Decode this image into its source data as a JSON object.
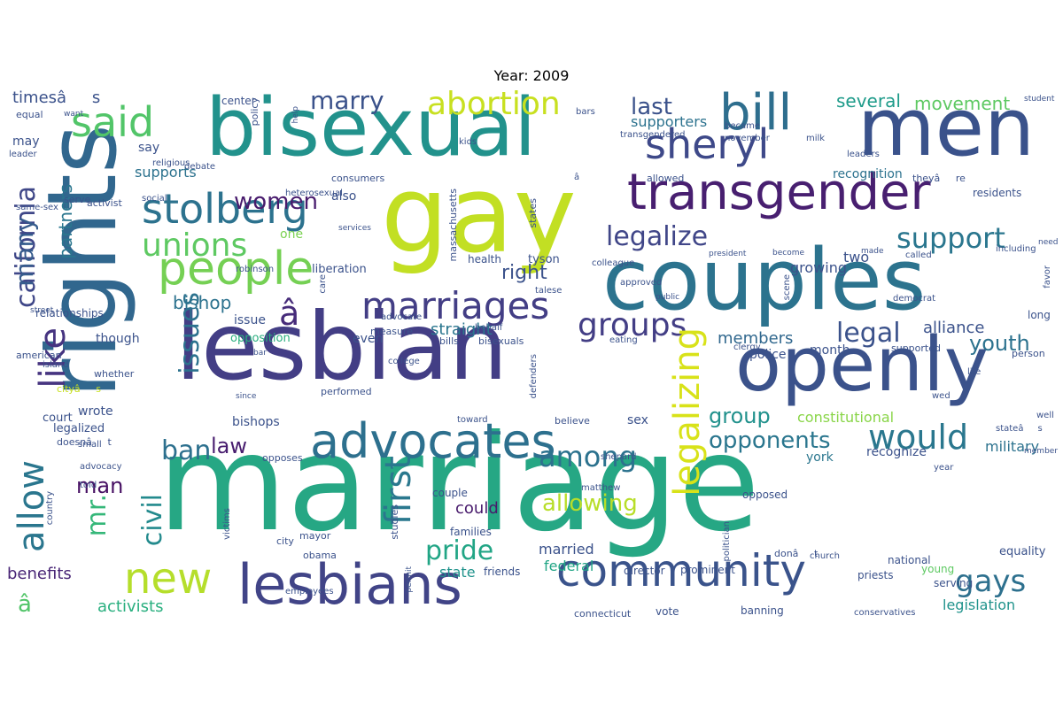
{
  "title": "Year: 2009",
  "words": [
    {
      "text": "marriage",
      "color": "#26a784"
    },
    {
      "text": "gay",
      "color": "#c2df23"
    },
    {
      "text": "rights",
      "color": "#31678e"
    },
    {
      "text": "bisexual",
      "color": "#22928c"
    },
    {
      "text": "lesbian",
      "color": "#433e85"
    },
    {
      "text": "couples",
      "color": "#2c738e"
    },
    {
      "text": "men",
      "color": "#3a528b"
    },
    {
      "text": "openly",
      "color": "#3b528b"
    },
    {
      "text": "transgender",
      "color": "#481f70"
    },
    {
      "text": "lesbians",
      "color": "#414487"
    },
    {
      "text": "community",
      "color": "#3a538b"
    },
    {
      "text": "advocates",
      "color": "#2d708e"
    },
    {
      "text": "people",
      "color": "#75d054"
    },
    {
      "text": "bill",
      "color": "#2e6e8e"
    },
    {
      "text": "stolberg",
      "color": "#2c728e"
    },
    {
      "text": "sheryl",
      "color": "#3e4989"
    },
    {
      "text": "marriages",
      "color": "#433e85"
    },
    {
      "text": "said",
      "color": "#52c569"
    },
    {
      "text": "new",
      "color": "#b5de2b"
    },
    {
      "text": "california",
      "color": "#3f4788"
    },
    {
      "text": "abortion",
      "color": "#c8e020"
    },
    {
      "text": "unions",
      "color": "#5ec962"
    },
    {
      "text": "legalize",
      "color": "#404688"
    },
    {
      "text": "support",
      "color": "#2a768e"
    },
    {
      "text": "groups",
      "color": "#433e85"
    },
    {
      "text": "would",
      "color": "#2a778e"
    },
    {
      "text": "marry",
      "color": "#3b528b"
    },
    {
      "text": "legal",
      "color": "#3b528b"
    },
    {
      "text": "â",
      "color": "#472c7a"
    },
    {
      "text": "allow",
      "color": "#2a768e"
    },
    {
      "text": "issues",
      "color": "#2c728e"
    },
    {
      "text": "first",
      "color": "#2a788e"
    },
    {
      "text": "among",
      "color": "#2c728e"
    },
    {
      "text": "pride",
      "color": "#21a585"
    },
    {
      "text": "gays",
      "color": "#2d708e"
    },
    {
      "text": "like",
      "color": "#463480"
    },
    {
      "text": "many",
      "color": "#365c8d"
    },
    {
      "text": "women",
      "color": "#481b6d"
    },
    {
      "text": "ban",
      "color": "#2d708e"
    },
    {
      "text": "mr.",
      "color": "#35b779"
    },
    {
      "text": "civil",
      "color": "#238a8d"
    },
    {
      "text": "legalizing",
      "color": "#d8e219"
    },
    {
      "text": "last",
      "color": "#3b528b"
    },
    {
      "text": "opponents",
      "color": "#2a768e"
    },
    {
      "text": "man",
      "color": "#471063"
    },
    {
      "text": "allowing",
      "color": "#b8de29"
    },
    {
      "text": "right",
      "color": "#3b528b"
    },
    {
      "text": "group",
      "color": "#21918c"
    },
    {
      "text": "youth",
      "color": "#2c728e"
    },
    {
      "text": "law",
      "color": "#481d6f"
    },
    {
      "text": "partners",
      "color": "#2a768e"
    },
    {
      "text": "bishop",
      "color": "#2c728e"
    },
    {
      "text": "â",
      "color": "#52c569"
    },
    {
      "text": "several",
      "color": "#1e9b8a"
    },
    {
      "text": "movement",
      "color": "#5ec962"
    },
    {
      "text": "straight",
      "color": "#2a768e"
    },
    {
      "text": "members",
      "color": "#31688e"
    },
    {
      "text": "alliance",
      "color": "#3b528b"
    },
    {
      "text": "could",
      "color": "#481a6c"
    },
    {
      "text": "benefits",
      "color": "#482576"
    },
    {
      "text": "activists",
      "color": "#29af7f"
    },
    {
      "text": "state",
      "color": "#20938c"
    },
    {
      "text": "federal",
      "color": "#21a585"
    },
    {
      "text": "married",
      "color": "#3b528b"
    },
    {
      "text": "two",
      "color": "#3b528b"
    },
    {
      "text": "growing",
      "color": "#3b528b"
    },
    {
      "text": "constitutional",
      "color": "#89d548"
    },
    {
      "text": "military",
      "color": "#2c728e"
    },
    {
      "text": "legislation",
      "color": "#20938c"
    },
    {
      "text": "supports",
      "color": "#2c728e"
    },
    {
      "text": "supporters",
      "color": "#2c728e"
    },
    {
      "text": "recognition",
      "color": "#2c728e"
    },
    {
      "text": "also",
      "color": "#3b528b"
    },
    {
      "text": "one",
      "color": "#7ad151"
    },
    {
      "text": "timesâs",
      "color": "#3b528b"
    },
    {
      "text": "may",
      "color": "#3b528b"
    },
    {
      "text": "say",
      "color": "#3b528b"
    },
    {
      "text": "issue",
      "color": "#3b528b"
    },
    {
      "text": "opposition",
      "color": "#29af7f"
    },
    {
      "text": "even",
      "color": "#3b528b"
    },
    {
      "text": "though",
      "color": "#3b528b"
    },
    {
      "text": "relationships",
      "color": "#3b528b"
    },
    {
      "text": "wrote",
      "color": "#3b528b"
    },
    {
      "text": "bishops",
      "color": "#3b528b"
    },
    {
      "text": "court",
      "color": "#3b528b"
    },
    {
      "text": "legalized",
      "color": "#3b528b"
    },
    {
      "text": "sex",
      "color": "#3b528b"
    },
    {
      "text": "recognize",
      "color": "#3b528b"
    },
    {
      "text": "york",
      "color": "#2a768e"
    },
    {
      "text": "month",
      "color": "#3b528b"
    },
    {
      "text": "police",
      "color": "#3b528b"
    },
    {
      "text": "tyson",
      "color": "#3b528b"
    },
    {
      "text": "health",
      "color": "#3b528b"
    },
    {
      "text": "liberation",
      "color": "#3b528b"
    },
    {
      "text": "families",
      "color": "#3b528b"
    },
    {
      "text": "friends",
      "color": "#3b528b"
    },
    {
      "text": "director",
      "color": "#3b528b"
    },
    {
      "text": "prominent",
      "color": "#3b528b"
    },
    {
      "text": "priests",
      "color": "#3b528b"
    },
    {
      "text": "equality",
      "color": "#3b528b"
    },
    {
      "text": "national",
      "color": "#3b528b"
    },
    {
      "text": "young",
      "color": "#5ec962"
    },
    {
      "text": "serving",
      "color": "#3b528b"
    },
    {
      "text": "vote",
      "color": "#3b528b"
    },
    {
      "text": "banning",
      "color": "#3b528b"
    },
    {
      "text": "opposed",
      "color": "#3b528b"
    },
    {
      "text": "couple",
      "color": "#3b528b"
    },
    {
      "text": "city",
      "color": "#3b528b"
    },
    {
      "text": "mayor",
      "color": "#3b528b"
    },
    {
      "text": "obama",
      "color": "#3b528b"
    },
    {
      "text": "studies",
      "color": "#3b528b"
    },
    {
      "text": "opposes",
      "color": "#3b528b"
    },
    {
      "text": "advocacy",
      "color": "#3b528b"
    },
    {
      "text": "told",
      "color": "#3b528b"
    },
    {
      "text": "country",
      "color": "#3b528b"
    },
    {
      "text": "american",
      "color": "#3b528b"
    },
    {
      "text": "whether",
      "color": "#3b528b"
    },
    {
      "text": "cityâs",
      "color": "#c8e020"
    },
    {
      "text": "small",
      "color": "#3b528b"
    },
    {
      "text": "island",
      "color": "#3b528b"
    },
    {
      "text": "street",
      "color": "#3b528b"
    },
    {
      "text": "serve",
      "color": "#3b528b"
    },
    {
      "text": "activist",
      "color": "#3b528b"
    },
    {
      "text": "social",
      "color": "#3b528b"
    },
    {
      "text": "same-sex",
      "color": "#3b528b"
    },
    {
      "text": "debate",
      "color": "#3b528b"
    },
    {
      "text": "religious",
      "color": "#3b528b"
    },
    {
      "text": "leader",
      "color": "#3b528b"
    },
    {
      "text": "equal",
      "color": "#3b528b"
    },
    {
      "text": "want",
      "color": "#3b528b"
    },
    {
      "text": "center",
      "color": "#3b528b"
    },
    {
      "text": "policy",
      "color": "#3b528b"
    },
    {
      "text": "help",
      "color": "#3b528b"
    },
    {
      "text": "consumers",
      "color": "#3b528b"
    },
    {
      "text": "kids",
      "color": "#3b528b"
    },
    {
      "text": "bars",
      "color": "#3b528b"
    },
    {
      "text": "transgendered",
      "color": "#3b528b"
    },
    {
      "text": "became",
      "color": "#3b528b"
    },
    {
      "text": "november",
      "color": "#3b528b"
    },
    {
      "text": "milk",
      "color": "#3b528b"
    },
    {
      "text": "leaders",
      "color": "#3b528b"
    },
    {
      "text": "allowed",
      "color": "#3b528b"
    },
    {
      "text": "theyâre",
      "color": "#3b528b"
    },
    {
      "text": "residents",
      "color": "#3b528b"
    },
    {
      "text": "student",
      "color": "#3b528b"
    },
    {
      "text": "massachusetts",
      "color": "#3b528b"
    },
    {
      "text": "heterosexual",
      "color": "#3b528b"
    },
    {
      "text": "states",
      "color": "#3b528b"
    },
    {
      "text": "robinson",
      "color": "#3b528b"
    },
    {
      "text": "need",
      "color": "#3b528b"
    },
    {
      "text": "made",
      "color": "#3b528b"
    },
    {
      "text": "called",
      "color": "#3b528b"
    },
    {
      "text": "including",
      "color": "#3b528b"
    },
    {
      "text": "colleague",
      "color": "#3b528b"
    },
    {
      "text": "president",
      "color": "#3b528b"
    },
    {
      "text": "become",
      "color": "#3b528b"
    },
    {
      "text": "care",
      "color": "#3b528b"
    },
    {
      "text": "scene",
      "color": "#3b528b"
    },
    {
      "text": "approved",
      "color": "#3b528b"
    },
    {
      "text": "public",
      "color": "#3b528b"
    },
    {
      "text": "democrat",
      "color": "#3b528b"
    },
    {
      "text": "favor",
      "color": "#3b528b"
    },
    {
      "text": "long",
      "color": "#3b528b"
    },
    {
      "text": "services",
      "color": "#3b528b"
    },
    {
      "text": "advocate",
      "color": "#3b528b"
    },
    {
      "text": "measure",
      "color": "#3b528b"
    },
    {
      "text": "behalf",
      "color": "#3b528b"
    },
    {
      "text": "bills",
      "color": "#3b528b"
    },
    {
      "text": "bisexuals",
      "color": "#3b528b"
    },
    {
      "text": "eating",
      "color": "#3b528b"
    },
    {
      "text": "clergy",
      "color": "#3b528b"
    },
    {
      "text": "supported",
      "color": "#3b528b"
    },
    {
      "text": "person",
      "color": "#3b528b"
    },
    {
      "text": "life",
      "color": "#3b528b"
    },
    {
      "text": "bar",
      "color": "#3b528b"
    },
    {
      "text": "college",
      "color": "#3b528b"
    },
    {
      "text": "since",
      "color": "#3b528b"
    },
    {
      "text": "performed",
      "color": "#3b528b"
    },
    {
      "text": "defenders",
      "color": "#3b528b"
    },
    {
      "text": "wed",
      "color": "#3b528b"
    },
    {
      "text": "doesnât",
      "color": "#3b528b"
    },
    {
      "text": "toward",
      "color": "#3b528b"
    },
    {
      "text": "believe",
      "color": "#3b528b"
    },
    {
      "text": "stateâs",
      "color": "#3b528b"
    },
    {
      "text": "well",
      "color": "#3b528b"
    },
    {
      "text": "member",
      "color": "#3b528b"
    },
    {
      "text": "shepard",
      "color": "#3b528b"
    },
    {
      "text": "year",
      "color": "#3b528b"
    },
    {
      "text": "matthew",
      "color": "#3b528b"
    },
    {
      "text": "victims",
      "color": "#3b528b"
    },
    {
      "text": "politician",
      "color": "#3b528b"
    },
    {
      "text": "donât",
      "color": "#3b528b"
    },
    {
      "text": "church",
      "color": "#3b528b"
    },
    {
      "text": "permit",
      "color": "#3b528b"
    },
    {
      "text": "employees",
      "color": "#3b528b"
    },
    {
      "text": "connecticut",
      "color": "#3b528b"
    },
    {
      "text": "conservatives",
      "color": "#3b528b"
    },
    {
      "text": "talese",
      "color": "#3b528b"
    },
    {
      "text": "â",
      "color": "#3b528b"
    }
  ]
}
